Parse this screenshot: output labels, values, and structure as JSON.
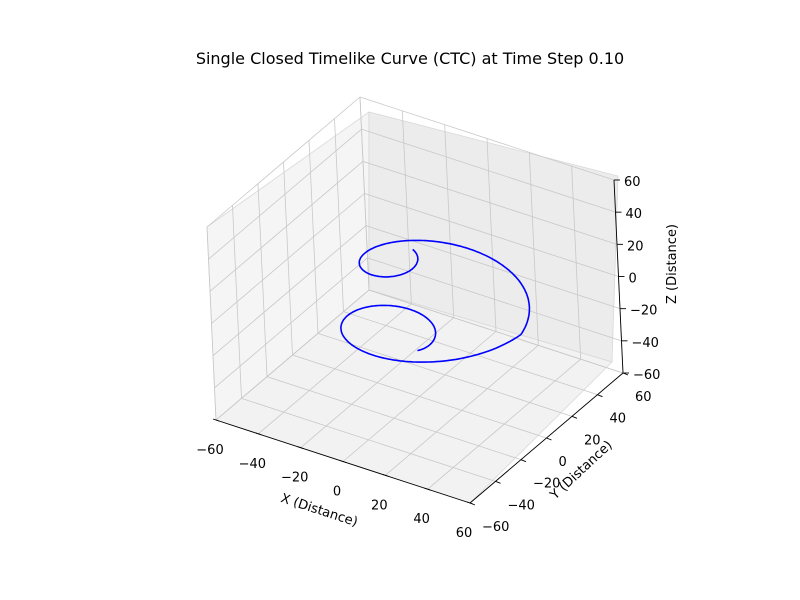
{
  "chart_data": {
    "type": "line3d",
    "title": "Single Closed Timelike Curve (CTC) at Time Step 0.10",
    "xlabel": "X (Distance)",
    "ylabel": "Y (Distance)",
    "zlabel": "Z (Distance)",
    "xlim": [
      -60,
      60
    ],
    "ylim": [
      -60,
      60
    ],
    "zlim": [
      -60,
      60
    ],
    "xticks": [
      "−60",
      "−40",
      "−20",
      "0",
      "20",
      "40",
      "60"
    ],
    "yticks": [
      "−60",
      "−40",
      "−20",
      "0",
      "20",
      "40",
      "60"
    ],
    "zticks": [
      "−60",
      "−40",
      "−20",
      "0",
      "20",
      "40",
      "60"
    ],
    "grid": true,
    "series": [
      {
        "color": "#0000ff",
        "curve": {
          "form": "conical helix",
          "x": "r(t)·cos(t)",
          "y": "r(t)·sin(t)",
          "z": "5·t",
          "r": "50·(1 − |t|/(2π))",
          "t_range": [
            -6.2832,
            6.2832
          ]
        }
      }
    ]
  }
}
